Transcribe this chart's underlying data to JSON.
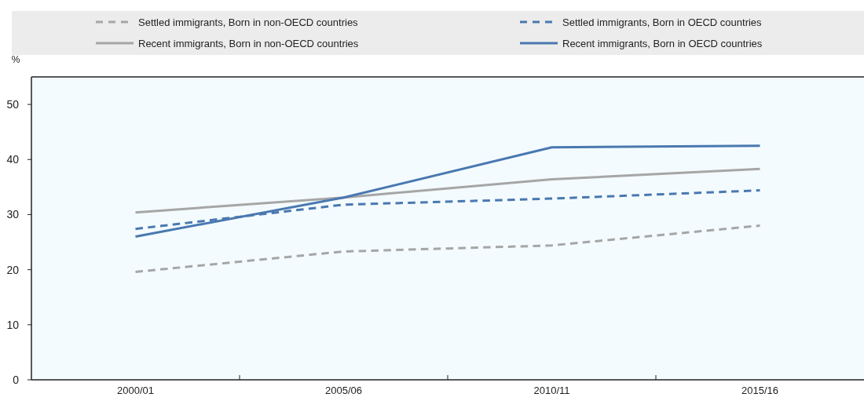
{
  "chart_data": {
    "type": "line",
    "ylabel": "%",
    "categories": [
      "2000/01",
      "2005/06",
      "2010/11",
      "2015/16"
    ],
    "series": [
      {
        "name": "Settled immigrants, Born in non-OECD countries",
        "color": "#a6a6a6",
        "line_style": "dashed",
        "values": [
          19.6,
          23.3,
          24.4,
          28.0
        ]
      },
      {
        "name": "Settled immigrants, Born in OECD countries",
        "color": "#4a78b0",
        "line_style": "dashed",
        "values": [
          27.4,
          31.8,
          32.9,
          34.4
        ]
      },
      {
        "name": "Recent immigrants, Born in non-OECD countries",
        "color": "#a6a6a6",
        "line_style": "solid",
        "values": [
          30.4,
          33.1,
          36.4,
          38.3
        ]
      },
      {
        "name": "Recent immigrants, Born in OECD countries",
        "color": "#4a78b0",
        "line_style": "solid",
        "values": [
          26.0,
          33.1,
          42.2,
          42.5
        ]
      }
    ],
    "ylim": [
      0,
      55
    ],
    "yticks": [
      0,
      10,
      20,
      30,
      40,
      50
    ],
    "grid": false,
    "legend": "top",
    "marker": "none"
  }
}
